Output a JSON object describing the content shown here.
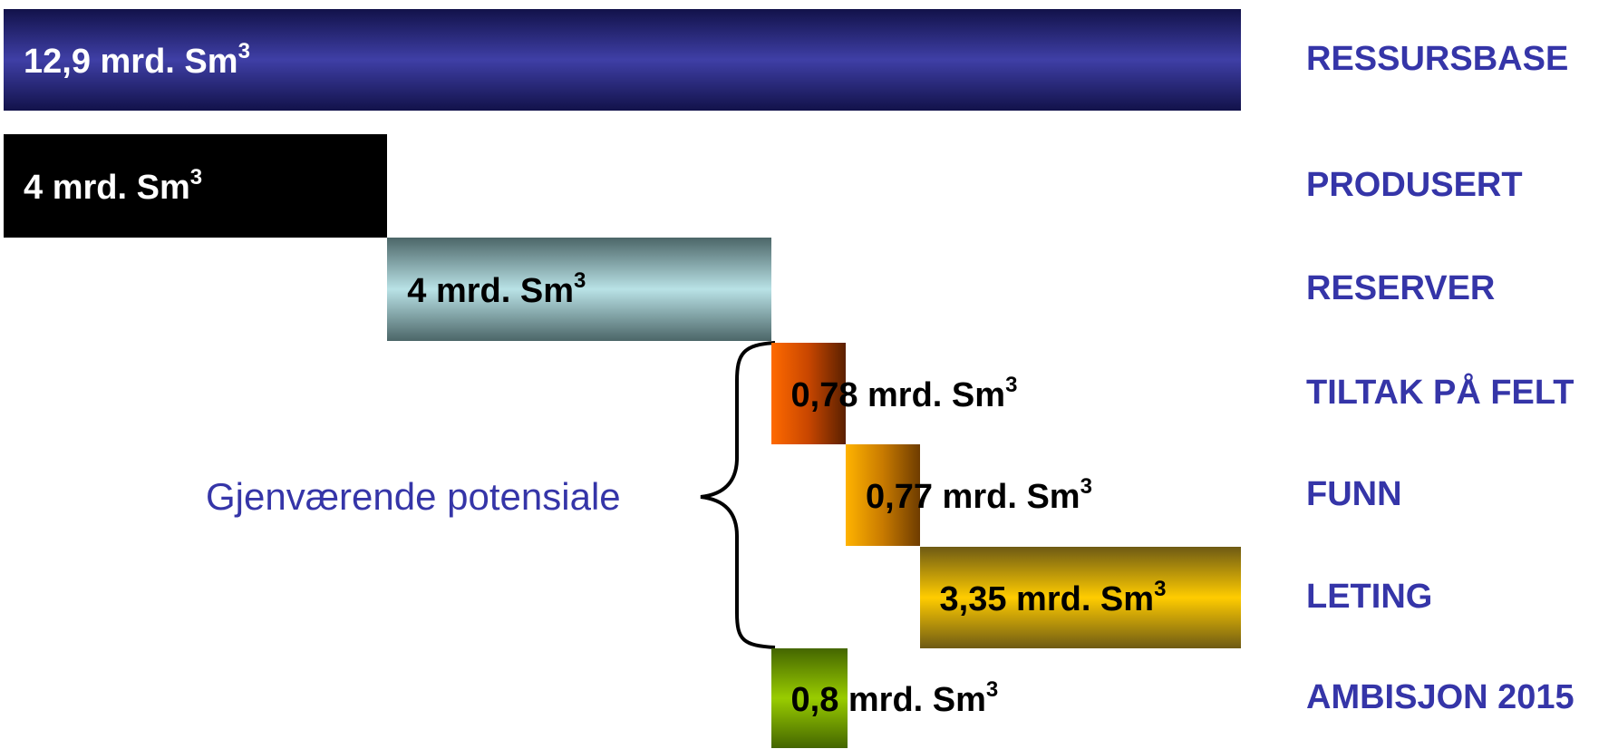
{
  "chart_data": {
    "type": "bar",
    "orientation": "horizontal-waterfall",
    "unit": "mrd. Sm3",
    "categories": [
      "RESSURSBASE",
      "PRODUSERT",
      "RESERVER",
      "TILTAK PÅ FELT",
      "FUNN",
      "LETING",
      "AMBISJON 2015"
    ],
    "values": [
      12.9,
      4,
      4,
      0.78,
      0.77,
      3.35,
      0.8
    ],
    "value_labels": [
      "12,9 mrd. Sm",
      "4 mrd. Sm",
      "4 mrd. Sm",
      "0,78 mrd. Sm",
      "0,77 mrd. Sm",
      "3,35 mrd. Sm",
      "0,8 mrd. Sm"
    ],
    "unit_superscript": "3",
    "colors": [
      "#2e2e8c",
      "#000000",
      "#8fc0c4",
      "#d95400",
      "#d98a00",
      "#e6b800",
      "#77aa00"
    ],
    "label_colors": [
      "#ffffff",
      "#ffffff",
      "#000000",
      "#000000",
      "#000000",
      "#000000",
      "#000000"
    ],
    "category_color": "#3535a8",
    "annotation": {
      "text": "Gjenværende potensiale",
      "spans": [
        "TILTAK PÅ FELT",
        "FUNN",
        "LETING"
      ]
    }
  }
}
